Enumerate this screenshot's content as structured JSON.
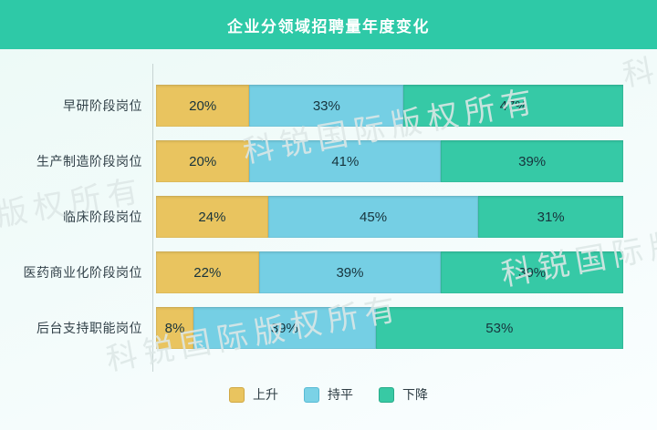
{
  "header": {
    "title": "企业分领域招聘量年度变化"
  },
  "chart_data": {
    "type": "bar",
    "orientation": "horizontal",
    "stacked": true,
    "title": "企业分领域招聘量年度变化",
    "unit": "%",
    "xlim": [
      0,
      100
    ],
    "grid": false,
    "legend_position": "bottom",
    "categories": [
      "早研阶段岗位",
      "生产制造阶段岗位",
      "临床阶段岗位",
      "医药商业化阶段岗位",
      "后台支持职能岗位"
    ],
    "series": [
      {
        "name": "上升",
        "color": "#e9c45f",
        "values": [
          20,
          20,
          24,
          22,
          8
        ]
      },
      {
        "name": "持平",
        "color": "#75cfe4",
        "values": [
          33,
          41,
          45,
          39,
          39
        ]
      },
      {
        "name": "下降",
        "color": "#36c9a6",
        "values": [
          47,
          39,
          31,
          39,
          53
        ]
      }
    ]
  },
  "legend": {
    "items": [
      {
        "label": "上升",
        "color": "#e9c45f",
        "border": "#d0a844"
      },
      {
        "label": "持平",
        "color": "#7bd2e6",
        "border": "#58bad4"
      },
      {
        "label": "下降",
        "color": "#38c9a4",
        "border": "#28ab89"
      }
    ]
  },
  "watermark": {
    "text": "科锐国际版权所有"
  },
  "colors": {
    "header_bg": "#2ec9a7",
    "title_text": "#ffffff",
    "axis_line": "#c7d4d3",
    "label_text": "#33424a",
    "value_text": "#17333c",
    "page_bg_top": "#ecfaf6",
    "page_bg_bottom": "#fafeff"
  }
}
